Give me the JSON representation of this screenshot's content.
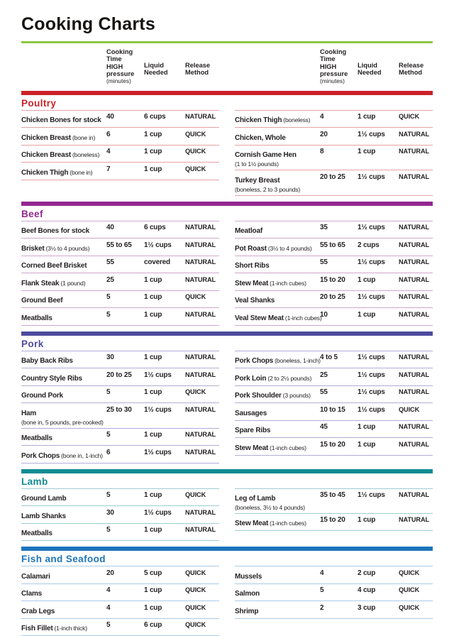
{
  "page": {
    "title": "Cooking Charts",
    "rule_color": "#8dc63f",
    "text_color": "#231f20"
  },
  "columns_header": {
    "time_lines": [
      "Cooking",
      "Time",
      "HIGH",
      "pressure"
    ],
    "time_unit": "(minutes)",
    "liquid_lines": [
      "Liquid",
      "Needed"
    ],
    "release_lines": [
      "Release",
      "Method"
    ]
  },
  "sections": [
    {
      "name": "Poultry",
      "color": "#cb2127",
      "line_color": "#e5a2a4",
      "left": [
        {
          "item": "Chicken Bones for stock",
          "time": "40",
          "liquid": "6 cups",
          "release": "NATURAL"
        },
        {
          "item": "Chicken Breast",
          "note": "(bone in)",
          "time": "6",
          "liquid": "1 cup",
          "release": "QUICK"
        },
        {
          "item": "Chicken Breast",
          "note": "(boneless)",
          "time": "4",
          "liquid": "1 cup",
          "release": "QUICK"
        },
        {
          "item": "Chicken Thigh",
          "note": "(bone in)",
          "time": "7",
          "liquid": "1 cup",
          "release": "QUICK"
        }
      ],
      "right": [
        {
          "item": "Chicken Thigh",
          "note": "(boneless)",
          "time": "4",
          "liquid": "1 cup",
          "release": "QUICK"
        },
        {
          "item": "Chicken, Whole",
          "time": "20",
          "liquid": "1½ cups",
          "release": "NATURAL"
        },
        {
          "item": "Cornish Game Hen",
          "note_below": "(1 to 1½ pounds)",
          "time": "8",
          "liquid": "1 cup",
          "release": "NATURAL"
        },
        {
          "item": "Turkey Breast",
          "note_below": "(boneless, 2 to 3 pounds)",
          "time": "20 to 25",
          "liquid": "1½ cups",
          "release": "NATURAL"
        }
      ]
    },
    {
      "name": "Beef",
      "color": "#92278f",
      "line_color": "#cfa6cd",
      "left": [
        {
          "item": "Beef Bones for stock",
          "time": "40",
          "liquid": "6 cups",
          "release": "NATURAL"
        },
        {
          "item": "Brisket",
          "note": "(3½ to 4 pounds)",
          "time": "55 to 65",
          "liquid": "1½ cups",
          "release": "NATURAL"
        },
        {
          "item": "Corned Beef Brisket",
          "time": "55",
          "liquid": "covered",
          "release": "NATURAL"
        },
        {
          "item": "Flank Steak",
          "note": "(1 pound)",
          "time": "25",
          "liquid": "1 cup",
          "release": "NATURAL"
        },
        {
          "item": "Ground Beef",
          "time": "5",
          "liquid": "1 cup",
          "release": "QUICK"
        },
        {
          "item": "Meatballs",
          "time": "5",
          "liquid": "1 cup",
          "release": "NATURAL"
        }
      ],
      "right": [
        {
          "item": "Meatloaf",
          "time": "35",
          "liquid": "1½ cups",
          "release": "NATURAL"
        },
        {
          "item": "Pot Roast",
          "note": "(3½ to 4 pounds)",
          "time": "55 to 65",
          "liquid": "2 cups",
          "release": "NATURAL"
        },
        {
          "item": "Short Ribs",
          "time": "55",
          "liquid": "1½ cups",
          "release": "NATURAL"
        },
        {
          "item": "Stew Meat",
          "note": "(1-inch cubes)",
          "time": "15 to 20",
          "liquid": "1 cup",
          "release": "NATURAL"
        },
        {
          "item": "Veal Shanks",
          "time": "20 to 25",
          "liquid": "1½ cups",
          "release": "NATURAL"
        },
        {
          "item": "Veal Stew Meat",
          "note": "(1-inch cubes)",
          "time": "10",
          "liquid": "1 cup",
          "release": "NATURAL"
        }
      ]
    },
    {
      "name": "Pork",
      "color": "#4d4a9e",
      "line_color": "#b0aed6",
      "left": [
        {
          "item": "Baby Back Ribs",
          "time": "30",
          "liquid": "1 cup",
          "release": "NATURAL"
        },
        {
          "item": "Country Style Ribs",
          "time": "20 to 25",
          "liquid": "1½ cups",
          "release": "NATURAL"
        },
        {
          "item": "Ground Pork",
          "time": "5",
          "liquid": "1 cup",
          "release": "QUICK"
        },
        {
          "item": "Ham",
          "note_below": "(bone in, 5 pounds, pre-cooked)",
          "time": "25 to 30",
          "liquid": "1½ cups",
          "release": "NATURAL"
        },
        {
          "item": "Meatballs",
          "time": "5",
          "liquid": "1 cup",
          "release": "NATURAL"
        },
        {
          "item": "Pork Chops",
          "note": "(bone in, 1-inch)",
          "time": "6",
          "liquid": "1½ cups",
          "release": "NATURAL"
        }
      ],
      "right": [
        {
          "item": "Pork Chops",
          "note": "(boneless, 1-inch)",
          "time": "4 to 5",
          "liquid": "1½ cups",
          "release": "NATURAL"
        },
        {
          "item": "Pork Loin",
          "note": "(2 to 2½ pounds)",
          "time": "25",
          "liquid": "1½ cups",
          "release": "NATURAL"
        },
        {
          "item": "Pork Shoulder",
          "note": "(3 pounds)",
          "time": "55",
          "liquid": "1½ cups",
          "release": "NATURAL"
        },
        {
          "item": "Sausages",
          "time": "10 to 15",
          "liquid": "1½ cups",
          "release": "QUICK"
        },
        {
          "item": "Spare Ribs",
          "time": "45",
          "liquid": "1 cup",
          "release": "NATURAL"
        },
        {
          "item": "Stew Meat",
          "note": "(1-inch cubes)",
          "time": "15 to 20",
          "liquid": "1 cup",
          "release": "NATURAL"
        }
      ]
    },
    {
      "name": "Lamb",
      "color": "#0f8b94",
      "line_color": "#9fcdd1",
      "left": [
        {
          "item": "Ground Lamb",
          "time": "5",
          "liquid": "1 cup",
          "release": "QUICK"
        },
        {
          "item": "Lamb Shanks",
          "time": "30",
          "liquid": "1½ cups",
          "release": "NATURAL"
        },
        {
          "item": "Meatballs",
          "time": "5",
          "liquid": "1 cup",
          "release": "NATURAL"
        }
      ],
      "right": [
        {
          "item": "Leg of Lamb",
          "note_below": "(boneless, 3½ to 4 pounds)",
          "time": "35 to 45",
          "liquid": "1½ cups",
          "release": "NATURAL"
        },
        {
          "item": "Stew Meat",
          "note": "(1-inch cubes)",
          "time": "15 to 20",
          "liquid": "1 cup",
          "release": "NATURAL"
        }
      ]
    },
    {
      "name": "Fish and Seafood",
      "color": "#1c75bb",
      "line_color": "#a9cbe8",
      "left": [
        {
          "item": "Calamari",
          "time": "20",
          "liquid": "5 cup",
          "release": "QUICK"
        },
        {
          "item": "Clams",
          "time": "4",
          "liquid": "1 cup",
          "release": "QUICK"
        },
        {
          "item": "Crab Legs",
          "time": "4",
          "liquid": "1 cup",
          "release": "QUICK"
        },
        {
          "item": "Fish Fillet",
          "note": "(1-inch thick)",
          "time": "5",
          "liquid": "6 cup",
          "release": "QUICK"
        }
      ],
      "right": [
        {
          "item": "Mussels",
          "time": "4",
          "liquid": "2 cup",
          "release": "QUICK"
        },
        {
          "item": "Salmon",
          "time": "5",
          "liquid": "4 cup",
          "release": "QUICK"
        },
        {
          "item": "Shrimp",
          "time": "2",
          "liquid": "3 cup",
          "release": "QUICK"
        }
      ]
    }
  ]
}
